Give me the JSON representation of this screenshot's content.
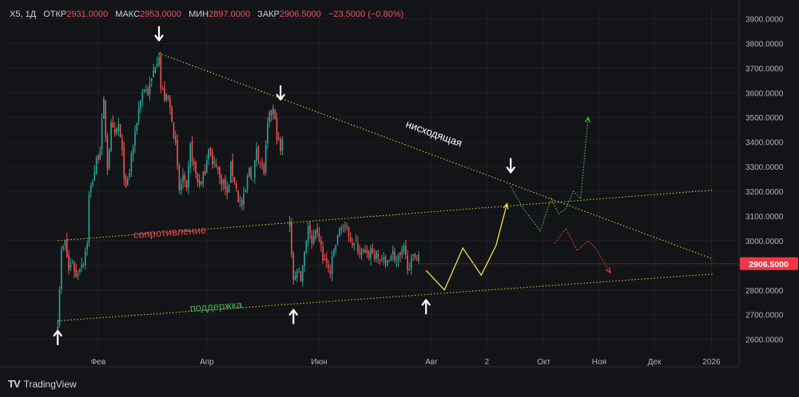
{
  "header": {
    "symbol": "X5, 1Д",
    "open_label": "ОТКР",
    "open": "2931.0000",
    "high_label": "МАКС",
    "high": "2953.0000",
    "low_label": "МИН",
    "low": "2897.0000",
    "close_label": "ЗАКР",
    "close": "2906.5000",
    "change": "−23.5000 (−0.80%)"
  },
  "brand": {
    "logo": "TV",
    "name": "TradingView"
  },
  "price_badge": "2906.5000",
  "annotations": {
    "descending": "нисходящая",
    "resistance": "сопротивление",
    "support": "поддержка"
  },
  "colors": {
    "up": "#26a69a",
    "down": "#ef5350",
    "trend": "#d6d64a",
    "bull_forecast": "#4caf50",
    "bear_forecast": "#e53935",
    "yellow_path": "#f2e14b",
    "badge": "#f23645"
  },
  "chart_data": {
    "type": "candlestick",
    "title": "",
    "xlabel": "",
    "ylabel": "",
    "ylim": [
      2560,
      3950
    ],
    "y_ticks": [
      "2600.0000",
      "2700.0000",
      "2800.0000",
      "2900.0000",
      "3000.0000",
      "3100.0000",
      "3200.0000",
      "3300.0000",
      "3400.0000",
      "3500.0000",
      "3600.0000",
      "3700.0000",
      "3800.0000",
      "3900.0000"
    ],
    "x_ticks": [
      {
        "label": "Фев",
        "day": 22
      },
      {
        "label": "Апр",
        "day": 81
      },
      {
        "label": "Июн",
        "day": 142
      },
      {
        "label": "Авг",
        "day": 203
      },
      {
        "label": "2",
        "day": 233
      },
      {
        "label": "Окт",
        "day": 264
      },
      {
        "label": "Ноя",
        "day": 294
      },
      {
        "label": "Дек",
        "day": 324
      },
      {
        "label": "2026",
        "day": 355
      }
    ],
    "price_segments": [
      [
        [
          0,
          2675
        ],
        [
          2,
          2950
        ],
        [
          4,
          2990
        ],
        [
          6,
          2880
        ],
        [
          8,
          2920
        ],
        [
          10,
          2850
        ],
        [
          12,
          2900
        ],
        [
          14,
          2920
        ],
        [
          16,
          3000
        ],
        [
          17,
          3180
        ],
        [
          19,
          3250
        ],
        [
          21,
          3320
        ],
        [
          23,
          3380
        ],
        [
          25,
          3560
        ],
        [
          27,
          3300
        ],
        [
          29,
          3460
        ],
        [
          31,
          3420
        ],
        [
          33,
          3470
        ],
        [
          35,
          3350
        ],
        [
          37,
          3200
        ],
        [
          39,
          3280
        ],
        [
          40,
          3350
        ],
        [
          42,
          3420
        ],
        [
          43,
          3490
        ],
        [
          45,
          3580
        ],
        [
          47,
          3620
        ],
        [
          49,
          3600
        ],
        [
          51,
          3650
        ],
        [
          53,
          3720
        ],
        [
          55,
          3760
        ],
        [
          56,
          3620
        ],
        [
          58,
          3580
        ],
        [
          60,
          3570
        ],
        [
          62,
          3500
        ],
        [
          64,
          3380
        ],
        [
          66,
          3200
        ],
        [
          68,
          3260
        ],
        [
          70,
          3190
        ],
        [
          72,
          3380
        ],
        [
          74,
          3300
        ],
        [
          76,
          3240
        ],
        [
          78,
          3230
        ],
        [
          80,
          3290
        ],
        [
          82,
          3390
        ],
        [
          84,
          3300
        ],
        [
          86,
          3320
        ],
        [
          88,
          3250
        ],
        [
          90,
          3240
        ],
        [
          92,
          3180
        ],
        [
          94,
          3300
        ],
        [
          96,
          3250
        ],
        [
          98,
          3170
        ],
        [
          100,
          3140
        ],
        [
          102,
          3200
        ],
        [
          104,
          3300
        ],
        [
          106,
          3240
        ],
        [
          108,
          3380
        ],
        [
          110,
          3320
        ],
        [
          112,
          3280
        ],
        [
          114,
          3460
        ],
        [
          115,
          3500
        ],
        [
          117,
          3530
        ],
        [
          119,
          3430
        ],
        [
          121,
          3360
        ],
        [
          122,
          3400
        ],
        [
          123,
          3420
        ]
      ],
      [
        [
          126,
          3090
        ],
        [
          128,
          2820
        ],
        [
          130,
          2890
        ],
        [
          132,
          2840
        ],
        [
          134,
          2960
        ],
        [
          136,
          3060
        ],
        [
          138,
          2980
        ],
        [
          140,
          3020
        ],
        [
          142,
          3010
        ],
        [
          144,
          2930
        ],
        [
          146,
          2900
        ],
        [
          148,
          2870
        ],
        [
          150,
          2960
        ],
        [
          152,
          3010
        ],
        [
          154,
          3070
        ],
        [
          156,
          3040
        ],
        [
          158,
          3040
        ],
        [
          160,
          2990
        ],
        [
          162,
          2980
        ],
        [
          164,
          2960
        ],
        [
          166,
          2950
        ],
        [
          168,
          2930
        ],
        [
          170,
          2960
        ],
        [
          172,
          2940
        ],
        [
          174,
          2930
        ],
        [
          176,
          2920
        ],
        [
          178,
          2900
        ],
        [
          180,
          2940
        ],
        [
          182,
          2950
        ],
        [
          184,
          2920
        ],
        [
          186,
          2930
        ],
        [
          188,
          2960
        ],
        [
          190,
          2900
        ],
        [
          192,
          2910
        ],
        [
          194,
          2940
        ],
        [
          196,
          2950
        ],
        [
          197,
          2907
        ]
      ]
    ],
    "forecast_paths": [
      {
        "color": "yellow_path",
        "style": "solid",
        "points": [
          [
            200,
            2880
          ],
          [
            210,
            2800
          ],
          [
            220,
            2970
          ],
          [
            230,
            2860
          ],
          [
            238,
            2980
          ],
          [
            244,
            3150
          ]
        ]
      },
      {
        "color": "bull_forecast",
        "style": "dotted",
        "points": [
          [
            246,
            3220
          ],
          [
            252,
            3140
          ],
          [
            258,
            3080
          ],
          [
            262,
            3040
          ],
          [
            268,
            3170
          ],
          [
            272,
            3110
          ],
          [
            276,
            3130
          ],
          [
            280,
            3200
          ],
          [
            284,
            3170
          ],
          [
            288,
            3500
          ]
        ]
      },
      {
        "color": "bear_forecast",
        "style": "dotted",
        "points": [
          [
            270,
            2990
          ],
          [
            276,
            3050
          ],
          [
            282,
            2960
          ],
          [
            288,
            3000
          ],
          [
            292,
            2970
          ],
          [
            300,
            2870
          ]
        ]
      }
    ],
    "trendlines": [
      {
        "name": "resistance",
        "start": [
          0,
          3000
        ],
        "end": [
          356,
          3205
        ]
      },
      {
        "name": "support",
        "start": [
          0,
          2675
        ],
        "end": [
          356,
          2865
        ]
      },
      {
        "name": "descending",
        "start": [
          55,
          3760
        ],
        "end": [
          356,
          2925
        ]
      }
    ],
    "markers": [
      {
        "direction": "down",
        "day": 55,
        "price": 3770
      },
      {
        "direction": "down",
        "day": 121,
        "price": 3530
      },
      {
        "direction": "down",
        "day": 246,
        "price": 3235
      },
      {
        "direction": "up",
        "day": 0,
        "price": 2670
      },
      {
        "direction": "up",
        "day": 128,
        "price": 2755
      },
      {
        "direction": "up",
        "day": 200,
        "price": 2795
      }
    ],
    "last_price": 2906.5
  }
}
